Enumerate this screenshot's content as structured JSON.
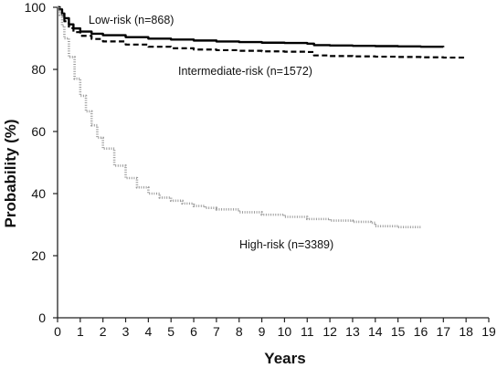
{
  "chart_data": {
    "type": "line",
    "title": "",
    "xlabel": "Years",
    "ylabel": "Probability (%)",
    "xlim": [
      0,
      19
    ],
    "ylim": [
      0,
      100
    ],
    "x_ticks": [
      "0",
      "1",
      "2",
      "3",
      "4",
      "5",
      "6",
      "7",
      "8",
      "9",
      "10",
      "11",
      "12",
      "13",
      "14",
      "15",
      "16",
      "17",
      "18",
      "19"
    ],
    "y_ticks": [
      "0",
      "20",
      "40",
      "60",
      "80",
      "100"
    ],
    "grid": false,
    "legend": "inline labels",
    "series": [
      {
        "name": "Low-risk (n=868)",
        "style": "solid",
        "color": "#000000",
        "x": [
          0,
          0.1,
          0.2,
          0.3,
          0.5,
          0.7,
          1,
          1.5,
          2,
          3,
          4,
          5,
          6,
          7,
          8,
          9,
          10,
          11,
          11.3,
          12,
          13,
          14,
          15,
          16,
          17
        ],
        "y": [
          100,
          99.3,
          98,
          96.5,
          94.5,
          93.2,
          92.2,
          91.5,
          91,
          90.4,
          89.9,
          89.6,
          89.3,
          89,
          88.8,
          88.6,
          88.5,
          88.3,
          87.8,
          87.7,
          87.6,
          87.5,
          87.4,
          87.3,
          87.2
        ]
      },
      {
        "name": "Intermediate-risk (n=1572)",
        "style": "dashed",
        "color": "#000000",
        "x": [
          0,
          0.1,
          0.2,
          0.3,
          0.5,
          0.7,
          1,
          1.5,
          2,
          3,
          4,
          5,
          6,
          7,
          8,
          9,
          10,
          11,
          11.3,
          12,
          13,
          14,
          15,
          16,
          17,
          18
        ],
        "y": [
          100,
          99,
          97.5,
          95.5,
          93.3,
          92,
          90.8,
          89.8,
          89,
          88,
          87.3,
          86.8,
          86.4,
          86.2,
          86,
          85.8,
          85.7,
          85.6,
          84.5,
          84.3,
          84.2,
          84.1,
          84,
          83.9,
          83.8,
          83.7
        ]
      },
      {
        "name": "High-risk (n=3389)",
        "style": "dotted",
        "color": "#999999",
        "x": [
          0,
          0.1,
          0.2,
          0.3,
          0.5,
          0.75,
          1,
          1.25,
          1.5,
          1.75,
          2,
          2.5,
          3,
          3.5,
          4,
          4.5,
          5,
          5.5,
          6,
          6.5,
          7,
          8,
          9,
          10,
          11,
          12,
          13,
          13.8,
          14,
          15,
          16
        ],
        "y": [
          100,
          97.5,
          94,
          90,
          84,
          77,
          71.5,
          66.5,
          62,
          58,
          54.5,
          49,
          45,
          42,
          40,
          38.7,
          37.7,
          36.8,
          36,
          35.4,
          34.9,
          34,
          33.2,
          32.5,
          31.8,
          31.3,
          30.9,
          30.6,
          29.5,
          29.2,
          29
        ]
      }
    ]
  }
}
